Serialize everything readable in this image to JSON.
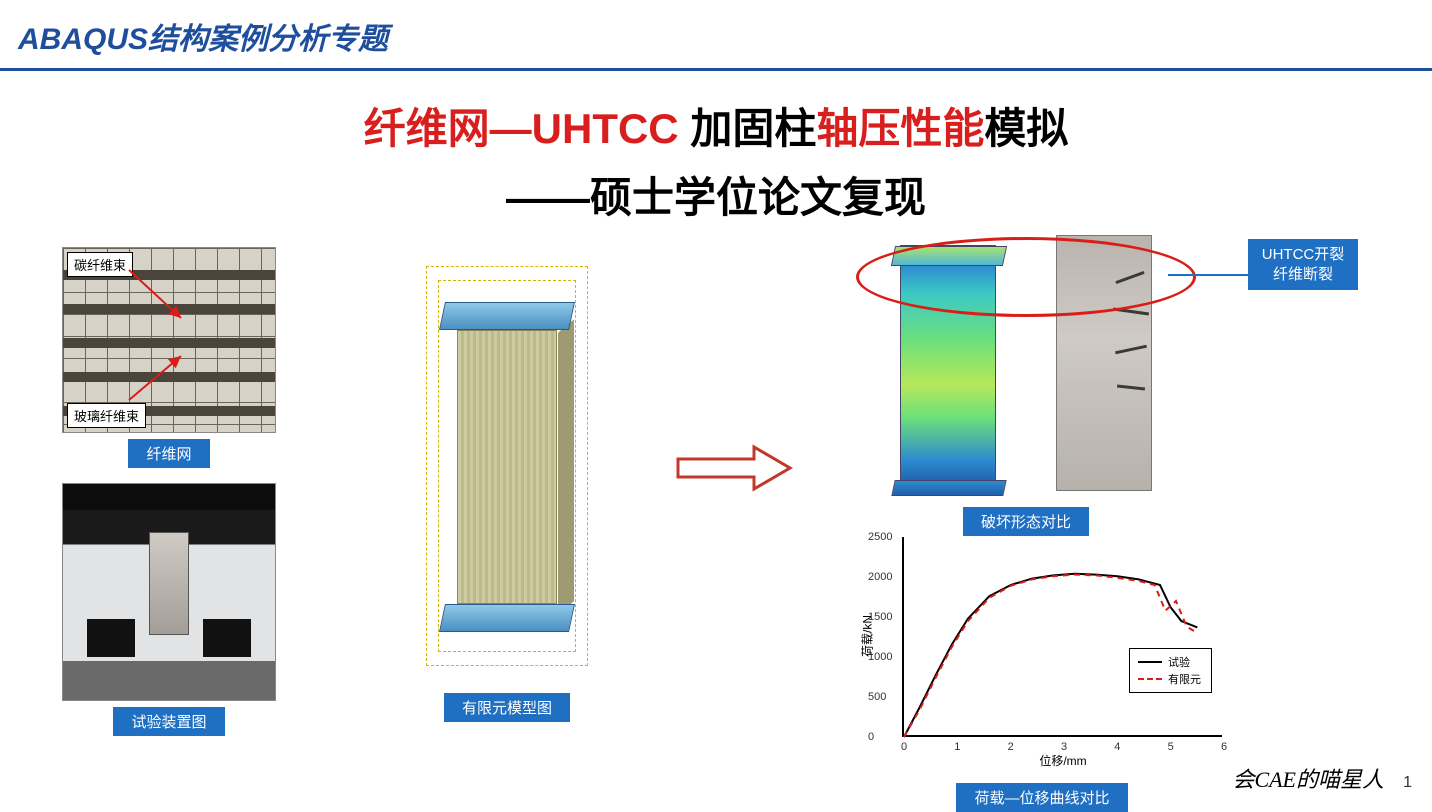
{
  "header": {
    "title": "ABAQUS结构案例分析专题"
  },
  "title": {
    "part1_red": "纤维网—",
    "part1_uhtcc": "UHTCC ",
    "part1_black": "加固柱",
    "part1_red2": "轴压性能",
    "part1_black2": "模拟",
    "subtitle": "——硕士学位论文复现"
  },
  "fiber": {
    "caption": "纤维网",
    "label_top": "碳纤维束",
    "label_bottom": "玻璃纤维束"
  },
  "test_setup": {
    "caption": "试验装置图"
  },
  "fem": {
    "caption": "有限元模型图"
  },
  "failure": {
    "caption": "破坏形态对比",
    "callout_line1": "UHTCC开裂",
    "callout_line2": "纤维断裂"
  },
  "chart": {
    "caption": "荷载—位移曲线对比",
    "xlabel": "位移/mm",
    "ylabel": "荷载/kN",
    "xlim": [
      0,
      6
    ],
    "xtick_step": 1,
    "ylim": [
      0,
      2500
    ],
    "ytick_step": 500,
    "legend": {
      "exp": "试验",
      "fem": "有限元"
    },
    "colors": {
      "exp": "#000000",
      "fem": "#d91d17"
    },
    "series_exp": {
      "x": [
        0,
        0.3,
        0.6,
        0.9,
        1.2,
        1.6,
        2.0,
        2.4,
        2.8,
        3.2,
        3.6,
        4.0,
        4.4,
        4.8,
        5.0,
        5.2,
        5.5
      ],
      "y": [
        0,
        380,
        780,
        1160,
        1480,
        1760,
        1900,
        1980,
        2020,
        2040,
        2030,
        2010,
        1970,
        1900,
        1620,
        1450,
        1370
      ]
    },
    "series_fem": {
      "x": [
        0,
        0.3,
        0.6,
        0.9,
        1.2,
        1.6,
        2.0,
        2.4,
        2.8,
        3.2,
        3.6,
        4.0,
        4.4,
        4.7,
        4.9,
        5.1,
        5.3,
        5.5
      ],
      "y": [
        0,
        350,
        750,
        1130,
        1450,
        1740,
        1890,
        1970,
        2010,
        2030,
        2020,
        1990,
        1950,
        1900,
        1580,
        1700,
        1380,
        1300
      ]
    }
  },
  "footer": {
    "author": "会CAE的喵星人",
    "page": "1"
  },
  "colors": {
    "brand_blue": "#1f4e9c",
    "caption_blue": "#1f6fc2",
    "accent_red": "#d91d17"
  }
}
